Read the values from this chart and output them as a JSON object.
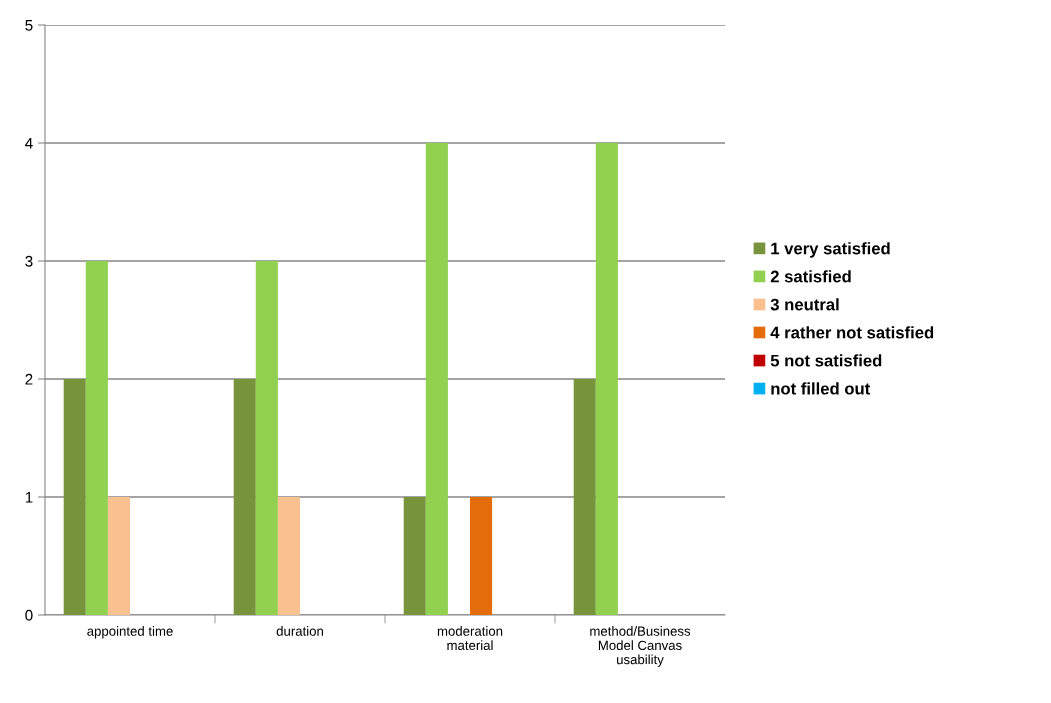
{
  "chart_data": {
    "type": "bar",
    "categories": [
      "appointed time",
      "duration",
      "moderation\nmaterial",
      "method/Business\nModel Canvas\nusability"
    ],
    "series": [
      {
        "name": "1 very satisfied",
        "color": "#77933c",
        "values": [
          2,
          2,
          1,
          2
        ]
      },
      {
        "name": "2 satisfied",
        "color": "#92d050",
        "values": [
          3,
          3,
          4,
          4
        ]
      },
      {
        "name": "3 neutral",
        "color": "#fac090",
        "values": [
          1,
          1,
          0,
          0
        ]
      },
      {
        "name": "4 rather not satisfied",
        "color": "#e46c0a",
        "values": [
          0,
          0,
          1,
          0
        ]
      },
      {
        "name": "5 not satisfied",
        "color": "#c00000",
        "values": [
          0,
          0,
          0,
          0
        ]
      },
      {
        "name": "not filled out",
        "color": "#00b0f0",
        "values": [
          0,
          0,
          0,
          0
        ]
      }
    ],
    "ylim": [
      0,
      5
    ],
    "yticks": [
      0,
      1,
      2,
      3,
      4,
      5
    ],
    "grid": "y",
    "legend": "right"
  }
}
